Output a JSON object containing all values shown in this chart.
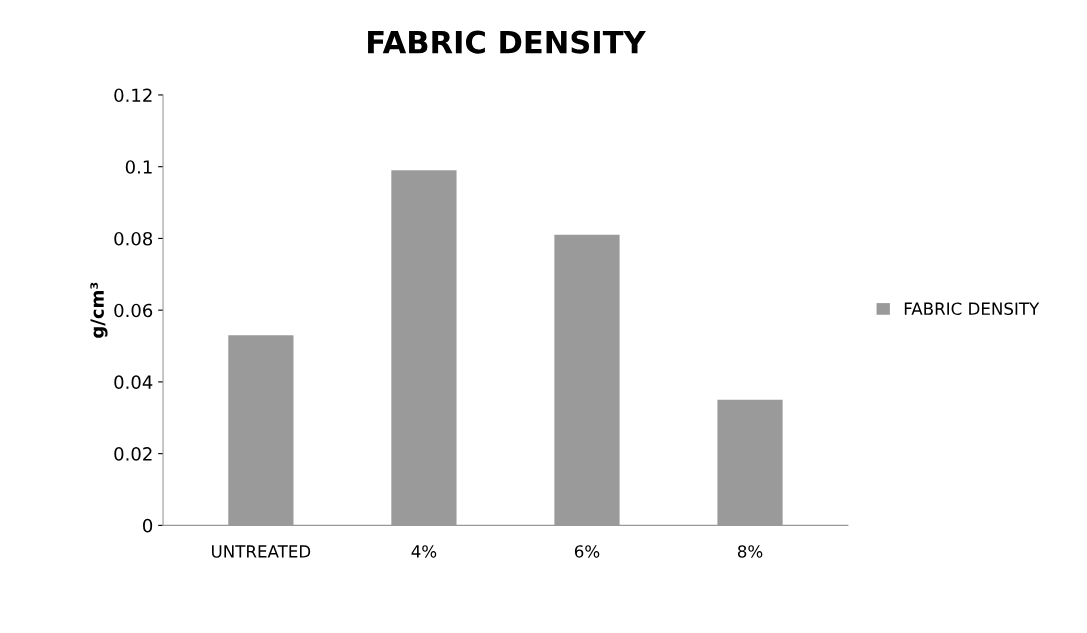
{
  "chart_data": {
    "type": "bar",
    "title": "FABRIC DENSITY",
    "ylabel": "g/cm³",
    "categories": [
      "UNTREATED",
      "4%",
      "6%",
      "8%"
    ],
    "series": [
      {
        "name": "FABRIC DENSITY",
        "color": "#9a9a9a",
        "values": [
          0.053,
          0.099,
          0.081,
          0.035
        ]
      }
    ],
    "ylim": [
      0,
      0.12
    ],
    "yticks": [
      0,
      0.02,
      0.04,
      0.06,
      0.08,
      0.1,
      0.12
    ],
    "grid": false,
    "legend": "right"
  }
}
